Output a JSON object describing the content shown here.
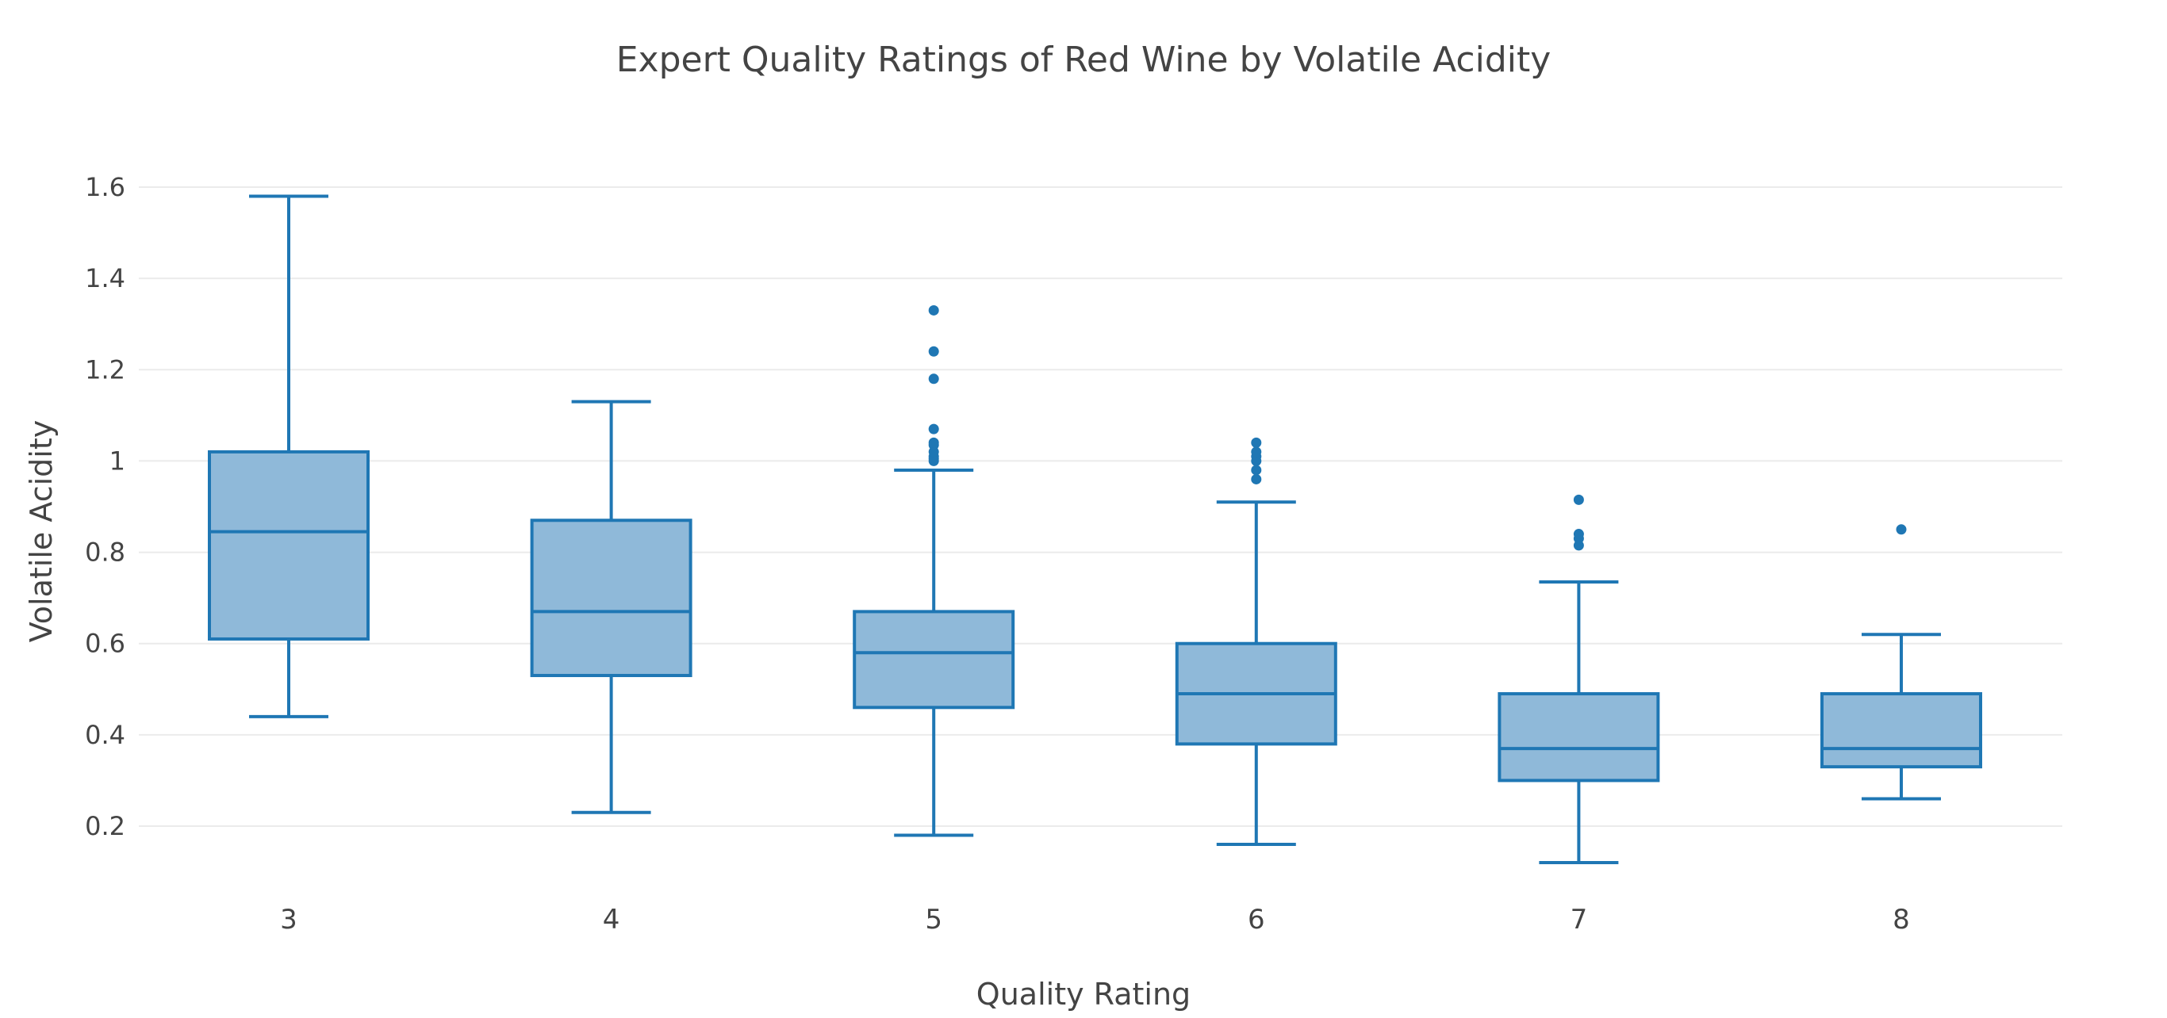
{
  "chart_data": {
    "type": "box",
    "title": "Expert Quality Ratings of Red Wine by Volatile Acidity",
    "xlabel": "Quality Rating",
    "ylabel": "Volatile Acidity",
    "categories": [
      "3",
      "4",
      "5",
      "6",
      "7",
      "8"
    ],
    "y_ticks": [
      0.2,
      0.4,
      0.6,
      0.8,
      1,
      1.2,
      1.4,
      1.6
    ],
    "y_tick_labels": [
      "0.2",
      "0.4",
      "0.6",
      "0.8",
      "1",
      "1.2",
      "1.4",
      "1.6"
    ],
    "ylim": [
      0.04,
      1.66
    ],
    "grid": true,
    "colors": {
      "line": "#1f77b4",
      "fill": "#8fb9d9",
      "grid": "#ebebeb",
      "text": "#444444"
    },
    "boxes": [
      {
        "category": "3",
        "whisker_low": 0.44,
        "q1": 0.61,
        "median": 0.845,
        "q3": 1.02,
        "whisker_high": 1.58,
        "outliers": []
      },
      {
        "category": "4",
        "whisker_low": 0.23,
        "q1": 0.53,
        "median": 0.67,
        "q3": 0.87,
        "whisker_high": 1.13,
        "outliers": []
      },
      {
        "category": "5",
        "whisker_low": 0.18,
        "q1": 0.46,
        "median": 0.58,
        "q3": 0.67,
        "whisker_high": 0.98,
        "outliers": [
          1.0,
          1.005,
          1.01,
          1.02,
          1.035,
          1.04,
          1.07,
          1.18,
          1.24,
          1.33
        ]
      },
      {
        "category": "6",
        "whisker_low": 0.16,
        "q1": 0.38,
        "median": 0.49,
        "q3": 0.6,
        "whisker_high": 0.91,
        "outliers": [
          0.96,
          0.98,
          1.0,
          1.01,
          1.02,
          1.04
        ]
      },
      {
        "category": "7",
        "whisker_low": 0.12,
        "q1": 0.3,
        "median": 0.37,
        "q3": 0.49,
        "whisker_high": 0.735,
        "outliers": [
          0.815,
          0.83,
          0.84,
          0.915
        ]
      },
      {
        "category": "8",
        "whisker_low": 0.26,
        "q1": 0.33,
        "median": 0.37,
        "q3": 0.49,
        "whisker_high": 0.62,
        "outliers": [
          0.85
        ]
      }
    ]
  }
}
